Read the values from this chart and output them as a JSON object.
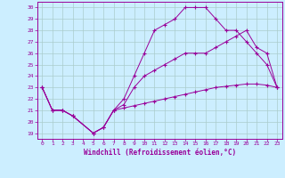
{
  "xlabel": "Windchill (Refroidissement éolien,°C)",
  "bg_color": "#cceeff",
  "line_color": "#990099",
  "grid_color": "#aacccc",
  "xlim": [
    -0.5,
    23.5
  ],
  "ylim": [
    18.5,
    30.5
  ],
  "xticks": [
    0,
    1,
    2,
    3,
    4,
    5,
    6,
    7,
    8,
    9,
    10,
    11,
    12,
    13,
    14,
    15,
    16,
    17,
    18,
    19,
    20,
    21,
    22,
    23
  ],
  "yticks": [
    19,
    20,
    21,
    22,
    23,
    24,
    25,
    26,
    27,
    28,
    29,
    30
  ],
  "line1_x": [
    0,
    1,
    2,
    3,
    5,
    6,
    7,
    8,
    9,
    10,
    11,
    12,
    13,
    14,
    15,
    16,
    17,
    18,
    19,
    20,
    21,
    22,
    23
  ],
  "line1_y": [
    23,
    21,
    21,
    20.5,
    19,
    19.5,
    21,
    22,
    24,
    26,
    28,
    28.5,
    29,
    30,
    30,
    30,
    29,
    28,
    28,
    27,
    26,
    25,
    23
  ],
  "line2_x": [
    0,
    1,
    2,
    3,
    5,
    6,
    7,
    8,
    9,
    10,
    11,
    12,
    13,
    14,
    15,
    16,
    17,
    18,
    19,
    20,
    21,
    22,
    23
  ],
  "line2_y": [
    23,
    21,
    21,
    20.5,
    19,
    19.5,
    21,
    21.5,
    23,
    24,
    24.5,
    25,
    25.5,
    26,
    26,
    26,
    26.5,
    27,
    27.5,
    28,
    26.5,
    26,
    23
  ],
  "line3_x": [
    0,
    1,
    2,
    3,
    5,
    6,
    7,
    8,
    9,
    10,
    11,
    12,
    13,
    14,
    15,
    16,
    17,
    18,
    19,
    20,
    21,
    22,
    23
  ],
  "line3_y": [
    23,
    21,
    21,
    20.5,
    19,
    19.5,
    21,
    21.2,
    21.4,
    21.6,
    21.8,
    22.0,
    22.2,
    22.4,
    22.6,
    22.8,
    23.0,
    23.1,
    23.2,
    23.3,
    23.3,
    23.2,
    23
  ]
}
